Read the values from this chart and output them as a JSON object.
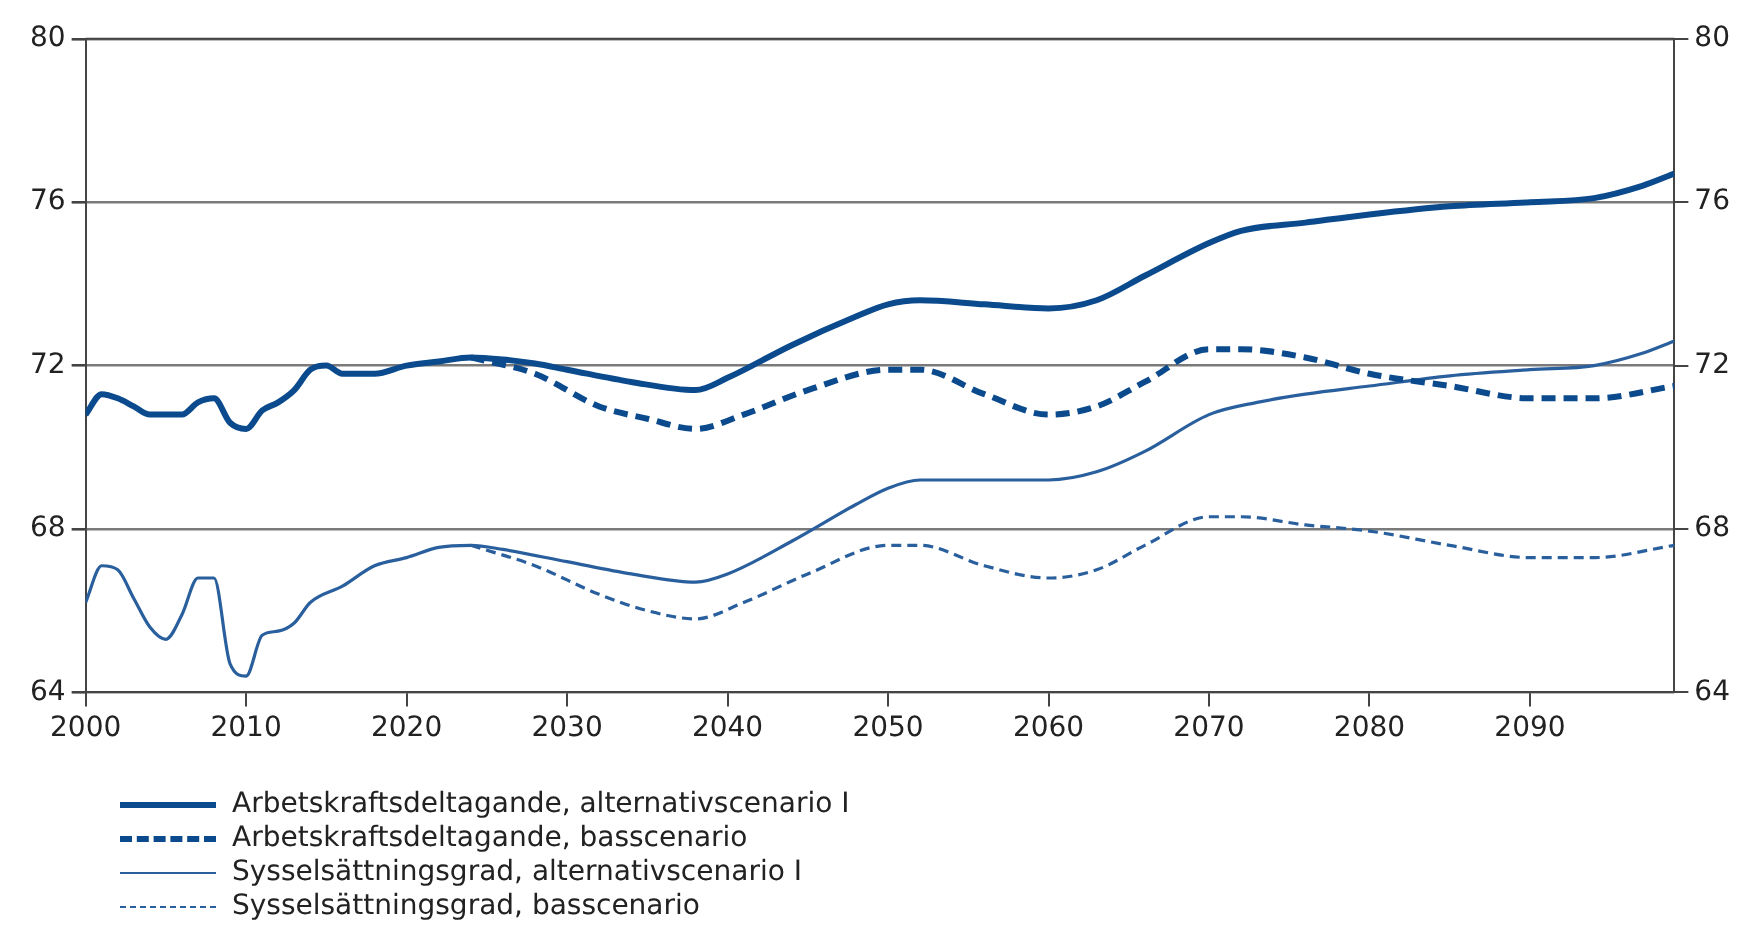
{
  "chart_data": {
    "type": "line",
    "xlim": [
      2000,
      2099
    ],
    "xticks": [
      2000,
      2010,
      2020,
      2030,
      2040,
      2050,
      2060,
      2070,
      2080,
      2090
    ],
    "ylim": [
      64,
      80
    ],
    "yticks": [
      64,
      68,
      72,
      76,
      80
    ],
    "y2lim": [
      64,
      80
    ],
    "y2ticks": [
      64,
      68,
      72,
      76,
      80
    ],
    "grid": "y",
    "legend": "bottom",
    "series": [
      {
        "name": "Arbetskraftsdeltagande, alternativscenario I",
        "color": "#0b4a8c",
        "line_style": "solid",
        "x": [
          2000,
          2001,
          2002,
          2003,
          2004,
          2005,
          2006,
          2007,
          2008,
          2009,
          2010,
          2011,
          2012,
          2013,
          2014,
          2015,
          2016,
          2017,
          2018,
          2020,
          2022,
          2024,
          2026,
          2028,
          2030,
          2034,
          2038,
          2040,
          2044,
          2048,
          2050,
          2052,
          2056,
          2060,
          2063,
          2066,
          2070,
          2072,
          2076,
          2080,
          2085,
          2090,
          2094,
          2097,
          2099
        ],
        "values": [
          70.8,
          71.3,
          71.2,
          71.0,
          70.8,
          70.8,
          70.8,
          71.1,
          71.2,
          70.6,
          70.45,
          70.9,
          71.1,
          71.4,
          71.9,
          72.0,
          71.8,
          71.8,
          71.8,
          72.0,
          72.1,
          72.2,
          72.15,
          72.05,
          71.9,
          71.6,
          71.4,
          71.7,
          72.5,
          73.2,
          73.5,
          73.6,
          73.5,
          73.4,
          73.6,
          74.2,
          75.0,
          75.3,
          75.5,
          75.7,
          75.9,
          76.0,
          76.1,
          76.4,
          76.7
        ]
      },
      {
        "name": "Arbetskraftsdeltagande, basscenario",
        "color": "#0b4a8c",
        "line_style": "dashed",
        "x": [
          2024,
          2028,
          2032,
          2035,
          2038,
          2041,
          2045,
          2050,
          2052,
          2056,
          2060,
          2063,
          2066,
          2070,
          2072,
          2076,
          2080,
          2085,
          2090,
          2094,
          2099
        ],
        "values": [
          72.2,
          71.8,
          71.0,
          70.7,
          70.45,
          70.8,
          71.4,
          71.9,
          71.9,
          71.3,
          70.8,
          71.0,
          71.6,
          72.4,
          72.4,
          72.2,
          71.8,
          71.5,
          71.2,
          71.2,
          71.5
        ]
      },
      {
        "name": "Sysselsättningsgrad, alternativscenario I",
        "color": "#2a5f9e",
        "line_style": "solid",
        "x": [
          2000,
          2001,
          2002,
          2003,
          2004,
          2005,
          2006,
          2007,
          2008,
          2009,
          2010,
          2011,
          2012,
          2013,
          2014,
          2016,
          2018,
          2020,
          2022,
          2024,
          2026,
          2030,
          2034,
          2038,
          2040,
          2044,
          2048,
          2050,
          2052,
          2056,
          2060,
          2063,
          2066,
          2070,
          2073,
          2076,
          2080,
          2085,
          2090,
          2094,
          2097,
          2099
        ],
        "values": [
          66.2,
          67.1,
          67.0,
          66.3,
          65.6,
          65.3,
          65.9,
          66.8,
          66.8,
          64.7,
          64.4,
          65.4,
          65.5,
          65.7,
          66.2,
          66.6,
          67.1,
          67.3,
          67.55,
          67.6,
          67.5,
          67.2,
          66.9,
          66.7,
          66.9,
          67.7,
          68.6,
          69.0,
          69.2,
          69.2,
          69.2,
          69.4,
          69.9,
          70.8,
          71.1,
          71.3,
          71.5,
          71.75,
          71.9,
          72.0,
          72.3,
          72.6
        ]
      },
      {
        "name": "Sysselsättningsgrad, basscenario",
        "color": "#2a5f9e",
        "line_style": "dashed",
        "x": [
          2024,
          2028,
          2032,
          2035,
          2038,
          2041,
          2045,
          2050,
          2052,
          2056,
          2060,
          2063,
          2066,
          2070,
          2072,
          2076,
          2080,
          2085,
          2090,
          2094,
          2099
        ],
        "values": [
          67.6,
          67.1,
          66.4,
          66.0,
          65.8,
          66.2,
          66.9,
          67.6,
          67.6,
          67.1,
          66.8,
          67.0,
          67.6,
          68.3,
          68.3,
          68.1,
          67.95,
          67.6,
          67.3,
          67.3,
          67.6
        ]
      }
    ]
  }
}
